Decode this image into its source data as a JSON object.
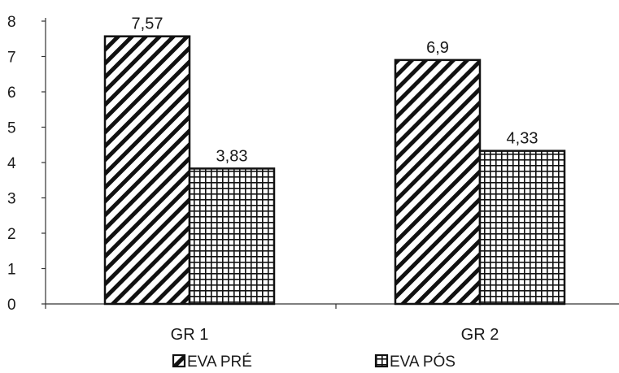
{
  "chart_data": {
    "type": "bar",
    "categories": [
      "GR 1",
      "GR 2"
    ],
    "series": [
      {
        "name": "EVA PRÉ",
        "values": [
          7.57,
          6.9
        ],
        "labels": [
          "7,57",
          "6,9"
        ],
        "pattern": "diagonal-hatch"
      },
      {
        "name": "EVA PÓS",
        "values": [
          3.83,
          4.33
        ],
        "labels": [
          "3,83",
          "4,33"
        ],
        "pattern": "grid-hatch"
      }
    ],
    "y_ticks": [
      "0",
      "1",
      "2",
      "3",
      "4",
      "5",
      "6",
      "7",
      "8"
    ],
    "ylim": [
      0,
      8
    ],
    "grid": false,
    "legend": "bottom",
    "colors": {
      "stroke": "#111111",
      "background": "#ffffff"
    }
  }
}
